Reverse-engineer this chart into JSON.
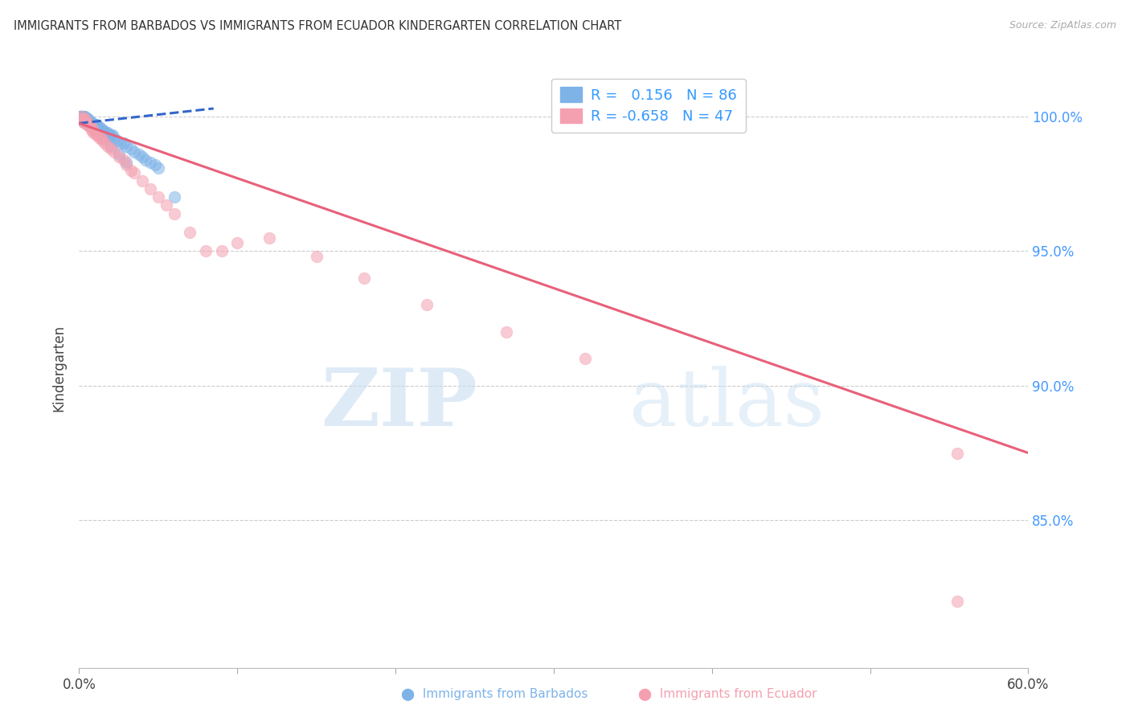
{
  "title": "IMMIGRANTS FROM BARBADOS VS IMMIGRANTS FROM ECUADOR KINDERGARTEN CORRELATION CHART",
  "source": "Source: ZipAtlas.com",
  "ylabel": "Kindergarten",
  "yticks": [
    "100.0%",
    "95.0%",
    "90.0%",
    "85.0%"
  ],
  "ytick_vals": [
    1.0,
    0.95,
    0.9,
    0.85
  ],
  "xlim": [
    0.0,
    0.6
  ],
  "ylim": [
    0.795,
    1.018
  ],
  "barbados_R": 0.156,
  "barbados_N": 86,
  "ecuador_R": -0.658,
  "ecuador_N": 47,
  "barbados_color": "#7EB3E8",
  "ecuador_color": "#F4A0B0",
  "trendline_barbados_color": "#3366CC",
  "trendline_ecuador_color": "#E8607A",
  "watermark_zip": "ZIP",
  "watermark_atlas": "atlas",
  "barbados_x": [
    0.001,
    0.001,
    0.001,
    0.001,
    0.001,
    0.002,
    0.002,
    0.002,
    0.002,
    0.002,
    0.002,
    0.002,
    0.003,
    0.003,
    0.003,
    0.003,
    0.003,
    0.003,
    0.004,
    0.004,
    0.004,
    0.004,
    0.004,
    0.005,
    0.005,
    0.005,
    0.005,
    0.005,
    0.006,
    0.006,
    0.006,
    0.006,
    0.007,
    0.007,
    0.007,
    0.008,
    0.008,
    0.008,
    0.009,
    0.009,
    0.01,
    0.01,
    0.01,
    0.011,
    0.011,
    0.012,
    0.012,
    0.013,
    0.014,
    0.015,
    0.015,
    0.016,
    0.017,
    0.018,
    0.019,
    0.02,
    0.021,
    0.022,
    0.024,
    0.026,
    0.028,
    0.03,
    0.033,
    0.035,
    0.038,
    0.04,
    0.042,
    0.045,
    0.048,
    0.05,
    0.001,
    0.002,
    0.003,
    0.004,
    0.005,
    0.006,
    0.007,
    0.008,
    0.009,
    0.01,
    0.012,
    0.015,
    0.02,
    0.025,
    0.03,
    0.06
  ],
  "barbados_y": [
    1.0,
    1.0,
    1.0,
    1.0,
    0.999,
    1.0,
    1.0,
    1.0,
    1.0,
    0.999,
    0.999,
    0.999,
    1.0,
    1.0,
    0.999,
    0.999,
    0.999,
    0.998,
    1.0,
    0.999,
    0.999,
    0.998,
    0.998,
    0.999,
    0.999,
    0.998,
    0.998,
    0.998,
    0.999,
    0.998,
    0.998,
    0.997,
    0.998,
    0.998,
    0.997,
    0.998,
    0.997,
    0.997,
    0.997,
    0.997,
    0.997,
    0.997,
    0.996,
    0.997,
    0.996,
    0.996,
    0.996,
    0.996,
    0.995,
    0.995,
    0.995,
    0.994,
    0.994,
    0.994,
    0.993,
    0.993,
    0.993,
    0.992,
    0.991,
    0.99,
    0.99,
    0.989,
    0.988,
    0.987,
    0.986,
    0.985,
    0.984,
    0.983,
    0.982,
    0.981,
    1.0,
    1.0,
    0.999,
    0.999,
    0.998,
    0.998,
    0.997,
    0.997,
    0.996,
    0.995,
    0.994,
    0.992,
    0.989,
    0.986,
    0.983,
    0.97
  ],
  "ecuador_x": [
    0.001,
    0.002,
    0.002,
    0.003,
    0.003,
    0.004,
    0.004,
    0.005,
    0.005,
    0.006,
    0.006,
    0.007,
    0.008,
    0.008,
    0.009,
    0.01,
    0.011,
    0.012,
    0.013,
    0.014,
    0.015,
    0.016,
    0.018,
    0.02,
    0.022,
    0.025,
    0.028,
    0.03,
    0.033,
    0.035,
    0.04,
    0.045,
    0.05,
    0.055,
    0.06,
    0.07,
    0.08,
    0.09,
    0.1,
    0.12,
    0.15,
    0.18,
    0.22,
    0.27,
    0.32,
    0.555,
    0.555
  ],
  "ecuador_y": [
    0.999,
    1.0,
    0.999,
    0.999,
    0.998,
    0.999,
    0.998,
    0.998,
    0.997,
    0.997,
    0.997,
    0.996,
    0.996,
    0.995,
    0.994,
    0.994,
    0.993,
    0.993,
    0.992,
    0.992,
    0.991,
    0.99,
    0.989,
    0.988,
    0.987,
    0.985,
    0.984,
    0.982,
    0.98,
    0.979,
    0.976,
    0.973,
    0.97,
    0.967,
    0.964,
    0.957,
    0.95,
    0.95,
    0.953,
    0.955,
    0.948,
    0.94,
    0.93,
    0.92,
    0.91,
    0.875,
    0.82
  ],
  "barbados_trend_x": [
    0.0,
    0.085
  ],
  "barbados_trend_y": [
    0.9975,
    1.003
  ],
  "ecuador_trend_x": [
    0.0,
    0.6
  ],
  "ecuador_trend_y": [
    0.9975,
    0.875
  ]
}
